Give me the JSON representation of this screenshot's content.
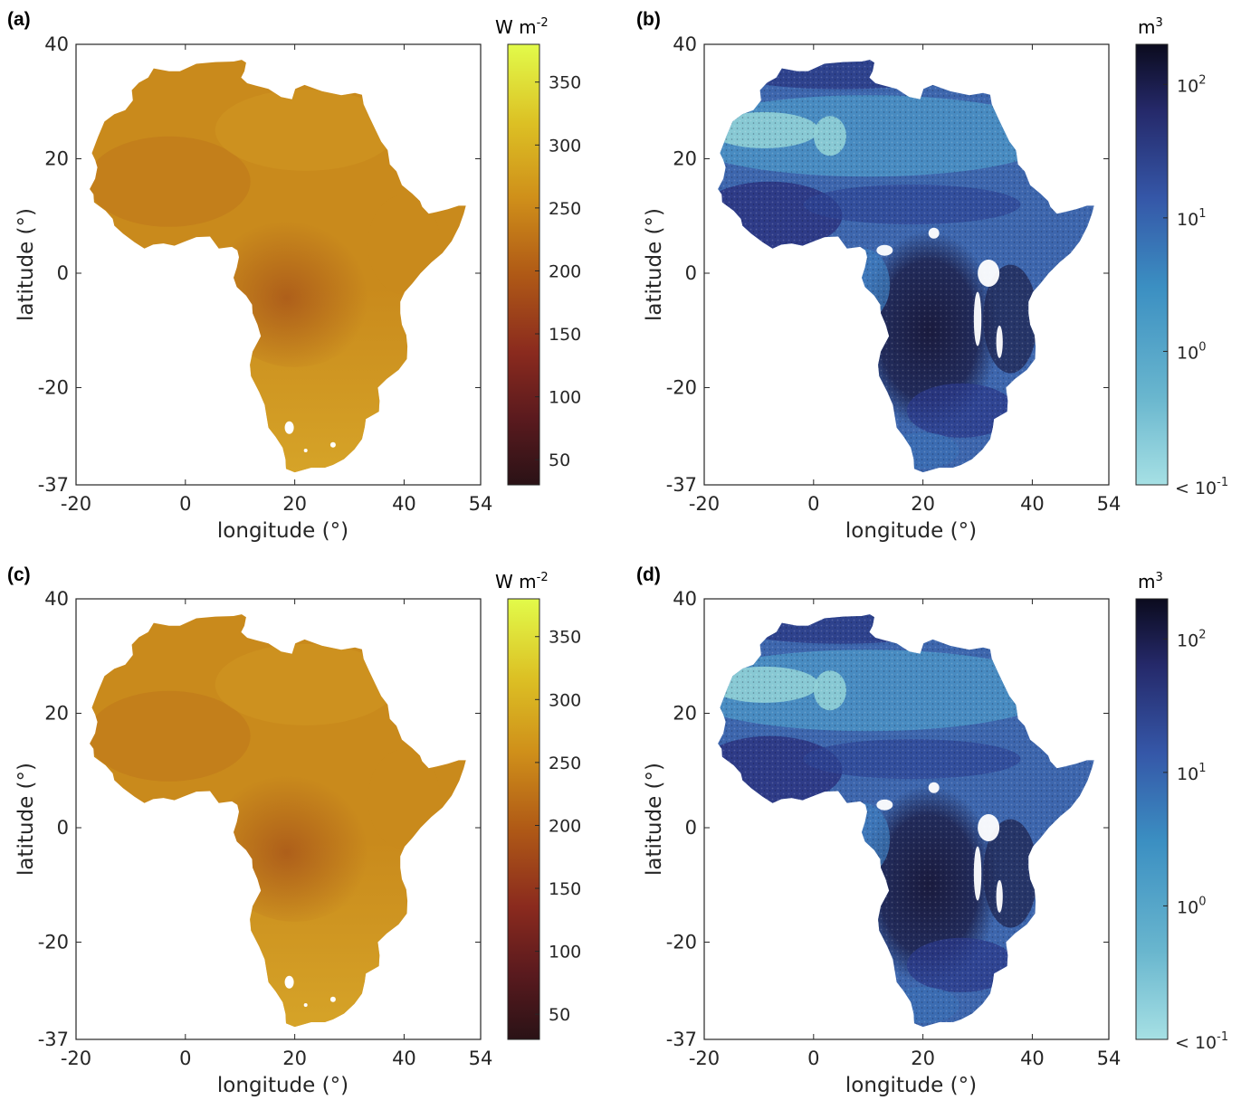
{
  "chart_data": [
    {
      "type": "heatmap",
      "panel_label": "(a)",
      "xlabel": "longitude (°)",
      "ylabel": "latitude (°)",
      "xlim": [
        -20,
        54
      ],
      "ylim": [
        -37,
        40
      ],
      "xticks": [
        "-20",
        "0",
        "20",
        "40",
        "54"
      ],
      "yticks": [
        "40",
        "20",
        "0",
        "-20",
        "-37"
      ],
      "colorbar": {
        "unit_base": "W m",
        "unit_exp": "-2",
        "ticks": [
          50,
          100,
          150,
          200,
          250,
          300,
          350
        ],
        "range": [
          30,
          380
        ],
        "colormap": "dark-brown-to-yellow"
      }
    },
    {
      "type": "heatmap",
      "panel_label": "(b)",
      "xlabel": "longitude (°)",
      "ylabel": "latitude (°)",
      "xlim": [
        -20,
        54
      ],
      "ylim": [
        -37,
        40
      ],
      "xticks": [
        "-20",
        "0",
        "20",
        "40",
        "54"
      ],
      "yticks": [
        "40",
        "20",
        "0",
        "-20",
        "-37"
      ],
      "colorbar": {
        "unit_base": "m",
        "unit_exp": "3",
        "ticks_log10": [
          2,
          1,
          0
        ],
        "tick_base": "10",
        "bottom_label": "< 10",
        "bottom_exp": "-1",
        "scale": "log",
        "range_log10": [
          -1,
          2.3
        ],
        "colormap": "light-cyan-to-dark-navy"
      }
    },
    {
      "type": "heatmap",
      "panel_label": "(c)",
      "xlabel": "longitude (°)",
      "ylabel": "latitude (°)",
      "xlim": [
        -20,
        54
      ],
      "ylim": [
        -37,
        40
      ],
      "xticks": [
        "-20",
        "0",
        "20",
        "40",
        "54"
      ],
      "yticks": [
        "40",
        "20",
        "0",
        "-20",
        "-37"
      ],
      "colorbar": {
        "unit_base": "W m",
        "unit_exp": "-2",
        "ticks": [
          50,
          100,
          150,
          200,
          250,
          300,
          350
        ],
        "range": [
          30,
          380
        ],
        "colormap": "dark-brown-to-yellow"
      }
    },
    {
      "type": "heatmap",
      "panel_label": "(d)",
      "xlabel": "longitude (°)",
      "ylabel": "latitude (°)",
      "xlim": [
        -20,
        54
      ],
      "ylim": [
        -37,
        40
      ],
      "xticks": [
        "-20",
        "0",
        "20",
        "40",
        "54"
      ],
      "yticks": [
        "40",
        "20",
        "0",
        "-20",
        "-37"
      ],
      "colorbar": {
        "unit_base": "m",
        "unit_exp": "3",
        "ticks_log10": [
          2,
          1,
          0
        ],
        "tick_base": "10",
        "bottom_label": "< 10",
        "bottom_exp": "-1",
        "scale": "log",
        "range_log10": [
          -1,
          2.3
        ],
        "colormap": "light-cyan-to-dark-navy"
      }
    }
  ],
  "colors": {
    "flux_fill": "#c98a1c",
    "flux_dark": "#9c4f12",
    "vol_fill": "#3d66ad",
    "vol_dark": "#1c1d45",
    "vol_light": "#8fcfd6"
  }
}
